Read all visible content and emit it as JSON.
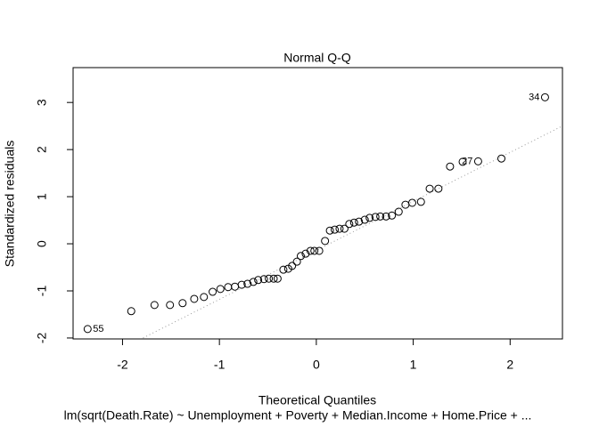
{
  "chart_data": {
    "type": "scatter",
    "title": "Normal Q-Q",
    "x_label": "Theoretical Quantiles",
    "y_label": "Standardized residuals",
    "subtitle": "lm(sqrt(Death.Rate) ~ Unemployment + Poverty + Median.Income + Home.Price + ...",
    "xlim": [
      -2.51,
      2.54
    ],
    "ylim": [
      -2.02,
      3.74
    ],
    "xticks": [
      -2,
      -1,
      0,
      1,
      2
    ],
    "yticks": [
      -2,
      -1,
      0,
      1,
      2,
      3
    ],
    "color": "#000000",
    "x": [
      -2.36,
      -1.91,
      -1.67,
      -1.51,
      -1.38,
      -1.26,
      -1.16,
      -1.07,
      -0.99,
      -0.91,
      -0.84,
      -0.77,
      -0.71,
      -0.65,
      -0.6,
      -0.54,
      -0.49,
      -0.44,
      -0.4,
      -0.34,
      -0.29,
      -0.25,
      -0.2,
      -0.16,
      -0.11,
      -0.06,
      -0.02,
      0.03,
      0.09,
      0.14,
      0.19,
      0.24,
      0.29,
      0.34,
      0.39,
      0.44,
      0.5,
      0.55,
      0.61,
      0.66,
      0.72,
      0.78,
      0.85,
      0.92,
      0.99,
      1.08,
      1.17,
      1.26,
      1.38,
      1.51,
      1.67,
      1.91,
      2.36
    ],
    "values": [
      -1.81,
      -1.43,
      -1.3,
      -1.3,
      -1.26,
      -1.17,
      -1.13,
      -1.02,
      -0.96,
      -0.92,
      -0.91,
      -0.87,
      -0.85,
      -0.81,
      -0.77,
      -0.75,
      -0.74,
      -0.74,
      -0.74,
      -0.55,
      -0.53,
      -0.47,
      -0.38,
      -0.26,
      -0.21,
      -0.15,
      -0.15,
      -0.15,
      0.06,
      0.28,
      0.3,
      0.32,
      0.32,
      0.42,
      0.45,
      0.47,
      0.51,
      0.55,
      0.57,
      0.58,
      0.58,
      0.6,
      0.68,
      0.83,
      0.87,
      0.89,
      1.17,
      1.17,
      1.64,
      1.74,
      1.75,
      1.81,
      3.11
    ],
    "point_labels": [
      "55",
      null,
      null,
      null,
      null,
      null,
      null,
      null,
      null,
      null,
      null,
      null,
      null,
      null,
      null,
      null,
      null,
      null,
      null,
      null,
      null,
      null,
      null,
      null,
      null,
      null,
      null,
      null,
      null,
      null,
      null,
      null,
      null,
      null,
      null,
      null,
      null,
      null,
      null,
      null,
      null,
      null,
      null,
      null,
      null,
      null,
      null,
      null,
      null,
      null,
      "27",
      null,
      "34"
    ],
    "reference_line": {
      "slope": 1.04,
      "intercept": -0.14,
      "color": "#999999"
    }
  }
}
